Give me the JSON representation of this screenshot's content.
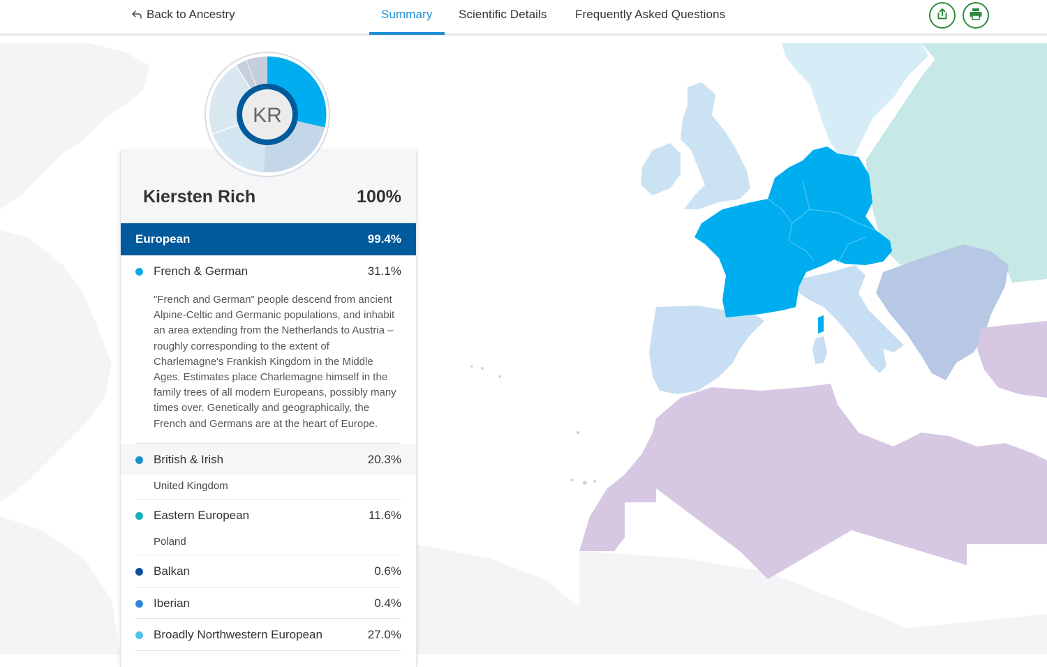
{
  "nav": {
    "back_label": "Back to Ancestry",
    "tabs": [
      {
        "label": "Summary",
        "active": true
      },
      {
        "label": "Scientific Details",
        "active": false
      },
      {
        "label": "Frequently Asked Questions",
        "active": false
      }
    ],
    "share_icon": "share-icon",
    "print_icon": "print-icon",
    "accent": "#1f8fd5",
    "button_color": "#2e8b3e"
  },
  "profile": {
    "initials": "KR",
    "name": "Kiersten Rich",
    "total": "100%"
  },
  "ancestry": {
    "group": {
      "label": "European",
      "percent": "99.4%",
      "color": "#005a9c"
    },
    "items": [
      {
        "label": "French & German",
        "percent": "31.1%",
        "color": "#10a9e8",
        "description": "\"French and German\" people descend from ancient Alpine-Celtic and Germanic populations, and inhabit an area extending from the Netherlands to Austria – roughly corresponding to the extent of Charlemagne's Frankish Kingdom in the Middle Ages. Estimates place Charlemagne himself in the family trees of all modern Europeans, possibly many times over. Genetically and geographically, the French and Germans are at the heart of Europe."
      },
      {
        "label": "British & Irish",
        "percent": "20.3%",
        "color": "#1a8fcf",
        "sub": "United Kingdom"
      },
      {
        "label": "Eastern European",
        "percent": "11.6%",
        "color": "#13b0b8",
        "sub": "Poland"
      },
      {
        "label": "Balkan",
        "percent": "0.6%",
        "color": "#0d4e9e"
      },
      {
        "label": "Iberian",
        "percent": "0.4%",
        "color": "#2f86d9"
      },
      {
        "label": "Broadly Northwestern European",
        "percent": "27.0%",
        "color": "#4fc3ec"
      }
    ]
  },
  "map_colors": {
    "highlight": "#00aeef",
    "british": "#cbe2f3",
    "eastern": "#c6e8e6",
    "scandinavia": "#d6edf7",
    "italian": "#c8def2",
    "balkan": "#b6c8e4",
    "north_africa": "#d6c7e3",
    "background_land": "#f2f3f4"
  }
}
